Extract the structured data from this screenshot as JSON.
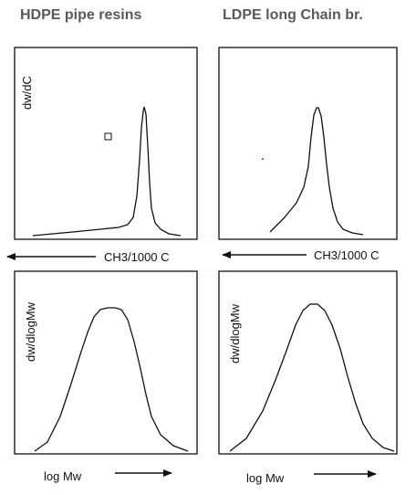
{
  "titles": {
    "left": "HDPE pipe resins",
    "right": "LDPE long Chain br."
  },
  "panels": {
    "top_left": {
      "ylabel": "dw/dC"
    },
    "top_right": {
      "ylabel": ""
    },
    "bottom_left": {
      "ylabel": "dw/dlogMw"
    },
    "bottom_right": {
      "ylabel": "dw/dlogMw"
    }
  },
  "axis_captions": {
    "left_middle": "CH3/1000 C",
    "right_middle": "CH3/1000 C",
    "left_bottom": "log Mw",
    "right_bottom": "log Mw"
  },
  "colors": {
    "title": "#595959",
    "stroke": "#111111",
    "background": "#ffffff"
  }
}
